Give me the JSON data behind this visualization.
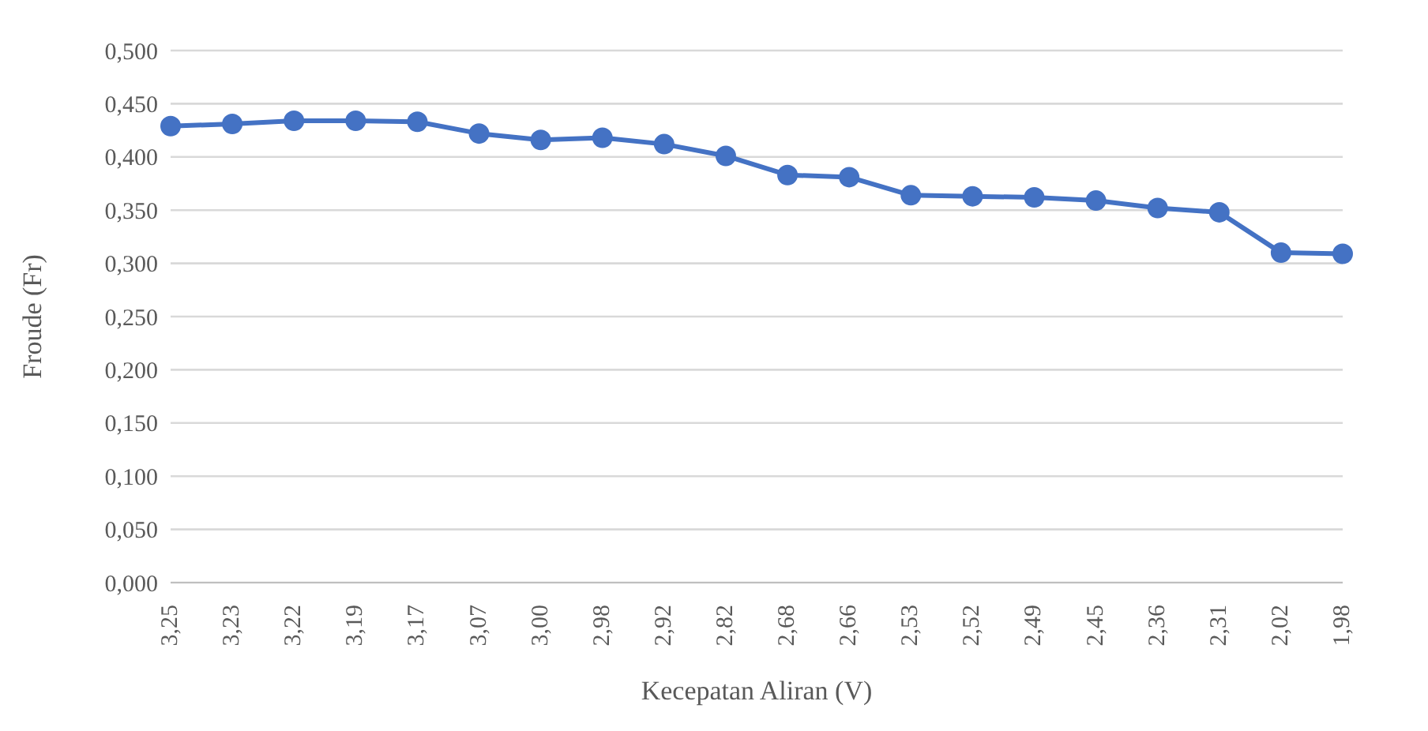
{
  "chart_data": {
    "type": "line",
    "xlabel": "Kecepatan Aliran  (V)",
    "ylabel": "Froude (Fr)",
    "categories": [
      "3,25",
      "3,23",
      "3,22",
      "3,19",
      "3,17",
      "3,07",
      "3,00",
      "2,98",
      "2,92",
      "2,82",
      "2,68",
      "2,66",
      "2,53",
      "2,52",
      "2,49",
      "2,45",
      "2,36",
      "2,31",
      "2,02",
      "1,98"
    ],
    "series": [
      {
        "color": "#4472c4",
        "values": [
          0.429,
          0.431,
          0.434,
          0.434,
          0.433,
          0.422,
          0.416,
          0.418,
          0.412,
          0.401,
          0.383,
          0.381,
          0.364,
          0.363,
          0.362,
          0.359,
          0.352,
          0.348,
          0.31,
          0.309
        ]
      }
    ],
    "ylim": [
      0,
      0.5
    ],
    "yticks": [
      {
        "value": 0,
        "label": "0,000"
      },
      {
        "value": 0.05,
        "label": "0,050"
      },
      {
        "value": 0.1,
        "label": "0,100"
      },
      {
        "value": 0.15,
        "label": "0,150"
      },
      {
        "value": 0.2,
        "label": "0,200"
      },
      {
        "value": 0.25,
        "label": "0,250"
      },
      {
        "value": 0.3,
        "label": "0,300"
      },
      {
        "value": 0.35,
        "label": "0,350"
      },
      {
        "value": 0.4,
        "label": "0,400"
      },
      {
        "value": 0.45,
        "label": "0,450"
      },
      {
        "value": 0.5,
        "label": "0,500"
      }
    ],
    "grid": "y",
    "marker": "circle",
    "line_style": "solid",
    "legend": false
  }
}
